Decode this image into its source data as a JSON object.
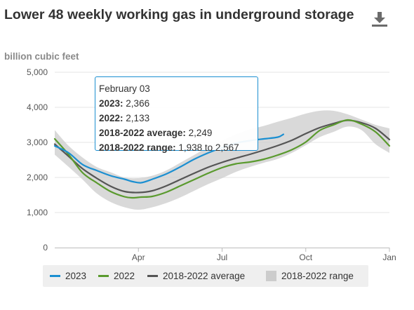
{
  "title": "Lower 48 weekly working gas in underground storage",
  "unit_label": "billion cubic feet",
  "icons": {
    "download": "download-icon"
  },
  "tooltip": {
    "date": "February 03",
    "lines": [
      {
        "label": "2023:",
        "value": "2,366"
      },
      {
        "label": "2022:",
        "value": "2,133"
      },
      {
        "label": "2018-2022 average:",
        "value": "2,249"
      },
      {
        "label": "2018-2022 range:",
        "value": "1,938 to 2,567"
      }
    ]
  },
  "legend": [
    {
      "label": "2023",
      "color": "#1b8fd1",
      "kind": "line"
    },
    {
      "label": "2022",
      "color": "#5a9a2e",
      "kind": "line"
    },
    {
      "label": "2018-2022 average",
      "color": "#555555",
      "kind": "line"
    },
    {
      "label": "2018-2022 range",
      "color": "#cccccc",
      "kind": "box"
    }
  ],
  "chart_data": {
    "type": "line",
    "title": "Lower 48 weekly working gas in underground storage",
    "ylabel": "billion cubic feet",
    "xlabel": "",
    "ylim": [
      0,
      5000
    ],
    "xlim": [
      0,
      12
    ],
    "yticks": [
      0,
      1000,
      2000,
      3000,
      4000,
      5000
    ],
    "ytick_labels": [
      "0",
      "1,000",
      "2,000",
      "3,000",
      "4,000",
      "5,000"
    ],
    "xticks": [
      3,
      6,
      9,
      12
    ],
    "xtick_labels": [
      "Apr",
      "Jul",
      "Oct",
      "Jan"
    ],
    "x_unit": "months since Jan 1",
    "grid": true,
    "legend_position": "bottom",
    "series": [
      {
        "name": "2023",
        "color": "#1b8fd1",
        "x": [
          0,
          0.5,
          1,
          1.5,
          2,
          2.5,
          2.8,
          3.1,
          3.5,
          4,
          4.5,
          5,
          5.5,
          6,
          6.5,
          7,
          7.5,
          8,
          8.2
        ],
        "y": [
          2900,
          2700,
          2366,
          2200,
          2050,
          1950,
          1880,
          1850,
          1950,
          2100,
          2300,
          2520,
          2700,
          2850,
          2980,
          3050,
          3100,
          3150,
          3230
        ]
      },
      {
        "name": "2022",
        "color": "#5a9a2e",
        "x": [
          0,
          0.5,
          1,
          1.5,
          2,
          2.5,
          2.8,
          3.1,
          3.5,
          4,
          4.5,
          5,
          5.5,
          6,
          6.5,
          7,
          7.5,
          8,
          8.5,
          9,
          9.5,
          10,
          10.5,
          11,
          11.5,
          12
        ],
        "y": [
          3100,
          2650,
          2133,
          1850,
          1600,
          1450,
          1420,
          1440,
          1460,
          1580,
          1760,
          1940,
          2120,
          2280,
          2390,
          2440,
          2520,
          2640,
          2790,
          3010,
          3340,
          3500,
          3640,
          3520,
          3300,
          2900
        ]
      },
      {
        "name": "2018-2022 average",
        "color": "#555555",
        "x": [
          0,
          0.5,
          1,
          1.5,
          2,
          2.5,
          3,
          3.5,
          4,
          4.5,
          5,
          5.5,
          6,
          6.5,
          7,
          7.5,
          8,
          8.5,
          9,
          9.5,
          10,
          10.5,
          11,
          11.5,
          12
        ],
        "y": [
          2950,
          2600,
          2249,
          1980,
          1750,
          1600,
          1570,
          1620,
          1760,
          1940,
          2120,
          2290,
          2430,
          2550,
          2660,
          2780,
          2910,
          3060,
          3250,
          3420,
          3540,
          3630,
          3560,
          3400,
          3080
        ]
      },
      {
        "name": "2018-2022 range",
        "x": [
          0,
          0.5,
          1,
          1.5,
          2,
          2.5,
          3,
          3.5,
          4,
          4.5,
          5,
          5.5,
          6,
          6.5,
          7,
          7.5,
          8,
          8.5,
          9,
          9.5,
          10,
          10.5,
          11,
          11.5,
          12
        ],
        "low": [
          2650,
          2300,
          1938,
          1550,
          1300,
          1150,
          1080,
          1150,
          1270,
          1430,
          1620,
          1810,
          1980,
          2160,
          2300,
          2420,
          2530,
          2700,
          2920,
          3150,
          3300,
          3450,
          3350,
          2950,
          2700
        ],
        "high": [
          3350,
          2900,
          2567,
          2300,
          2150,
          2000,
          1980,
          2050,
          2200,
          2420,
          2640,
          2870,
          3050,
          3230,
          3370,
          3470,
          3590,
          3700,
          3820,
          3900,
          3900,
          3800,
          3650,
          3500,
          3400
        ]
      }
    ]
  }
}
